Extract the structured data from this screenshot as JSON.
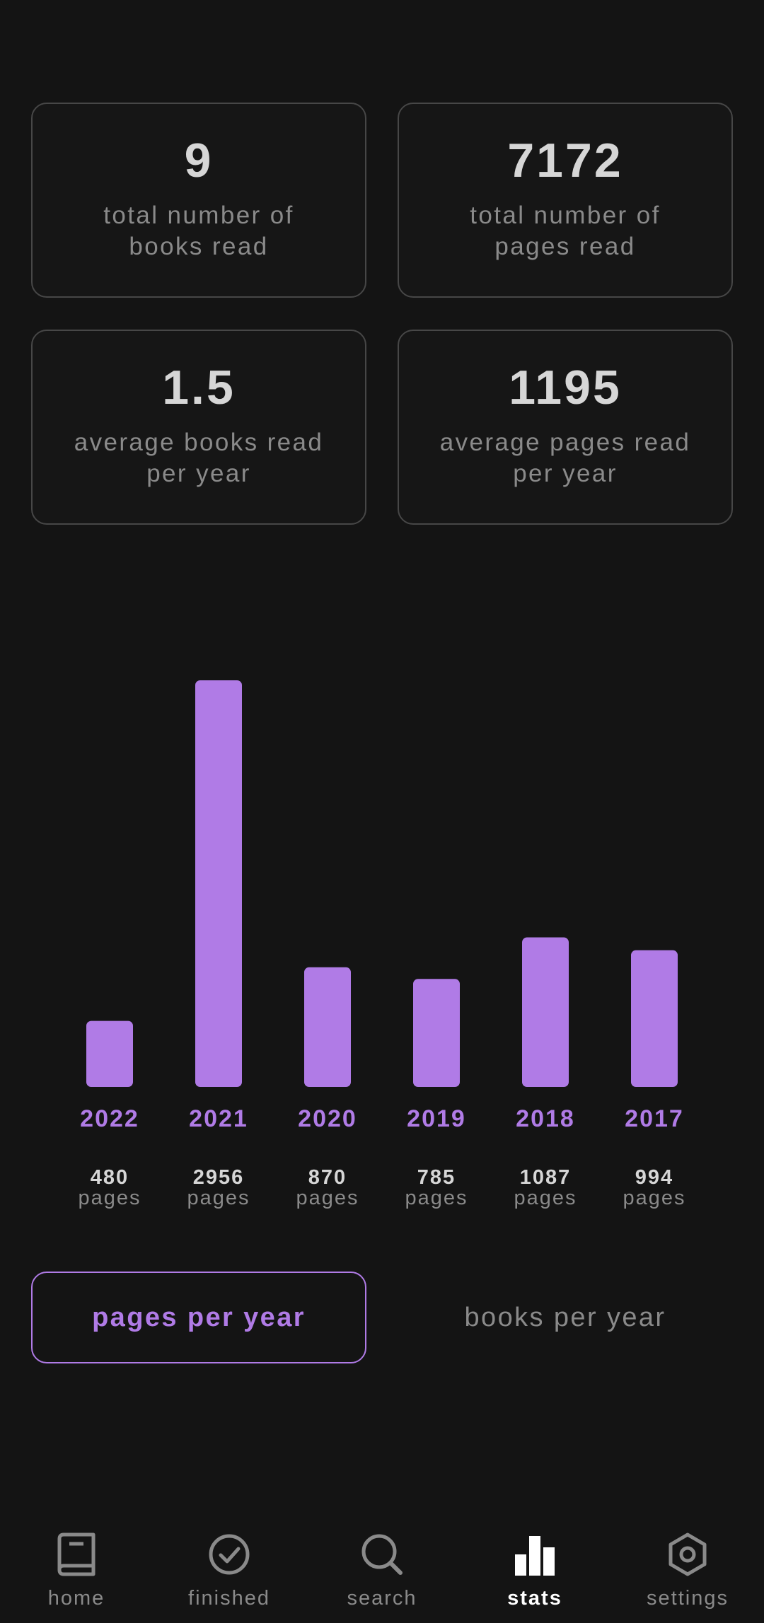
{
  "stats": {
    "total_books": {
      "value": "9",
      "label": "total number of\nbooks read"
    },
    "total_pages": {
      "value": "7172",
      "label": "total number of\npages read"
    },
    "avg_books": {
      "value": "1.5",
      "label": "average books read\nper year"
    },
    "avg_pages": {
      "value": "1195",
      "label": "average pages read\nper year"
    }
  },
  "chart_data": {
    "type": "bar",
    "categories": [
      "2022",
      "2021",
      "2020",
      "2019",
      "2018",
      "2017"
    ],
    "values": [
      480,
      2956,
      870,
      785,
      1087,
      994
    ],
    "value_labels": [
      "480",
      "2956",
      "870",
      "785",
      "1087",
      "994"
    ],
    "unit": "pages",
    "bar_color": "#b07be6",
    "ylim": [
      0,
      2956
    ]
  },
  "toggles": {
    "pages_per_year": "pages per year",
    "books_per_year": "books per year",
    "active": "pages per year"
  },
  "nav": {
    "items": [
      {
        "label": "home",
        "icon": "book-icon"
      },
      {
        "label": "finished",
        "icon": "check-circle-icon"
      },
      {
        "label": "search",
        "icon": "search-icon"
      },
      {
        "label": "stats",
        "icon": "bar-chart-icon"
      },
      {
        "label": "settings",
        "icon": "gear-icon"
      }
    ],
    "active": "stats"
  },
  "colors": {
    "background": "#141414",
    "accent": "#b07be6",
    "card_border": "#474747",
    "muted_text": "#8a8a8a",
    "bright_text": "#d6d6d6"
  }
}
